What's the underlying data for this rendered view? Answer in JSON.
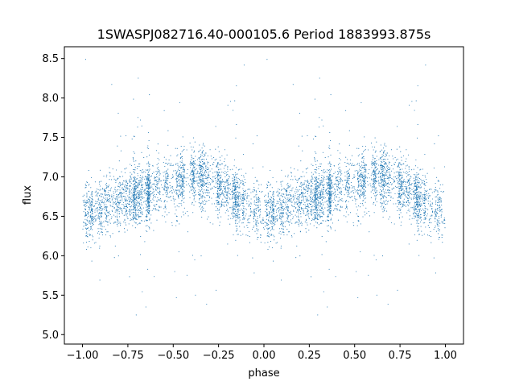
{
  "chart_data": {
    "type": "scatter",
    "title": "1SWASPJ082716.40-000105.6 Period 1883993.875s",
    "xlabel": "phase",
    "ylabel": "flux",
    "xlim": [
      -1.1,
      1.1
    ],
    "ylim": [
      4.88,
      8.65
    ],
    "x_ticks": [
      -1.0,
      -0.75,
      -0.5,
      -0.25,
      0.0,
      0.25,
      0.5,
      0.75,
      1.0
    ],
    "x_tick_labels": [
      "−1.00",
      "−0.75",
      "−0.50",
      "−0.25",
      "0.00",
      "0.25",
      "0.50",
      "0.75",
      "1.00"
    ],
    "y_ticks": [
      5.0,
      5.5,
      6.0,
      6.5,
      7.0,
      7.5,
      8.0,
      8.5
    ],
    "y_tick_labels": [
      "5.0",
      "5.5",
      "6.0",
      "6.5",
      "7.0",
      "7.5",
      "8.0",
      "8.5"
    ],
    "grid": false,
    "marker_color": "#1f77b4",
    "phase_range": [
      -1.0,
      1.0
    ],
    "series": [
      {
        "trend": {
          "x": [
            0.0,
            0.05,
            0.1,
            0.15,
            0.2,
            0.25,
            0.3,
            0.35,
            0.4,
            0.45,
            0.5,
            0.55,
            0.6,
            0.65,
            0.7,
            0.75,
            0.8,
            0.85,
            0.9,
            0.95,
            1.0
          ],
          "y": [
            6.55,
            6.58,
            6.62,
            6.66,
            6.7,
            6.74,
            6.77,
            6.8,
            6.84,
            6.88,
            6.92,
            6.96,
            7.0,
            7.0,
            6.95,
            6.88,
            6.8,
            6.72,
            6.64,
            6.58,
            6.55
          ]
        },
        "spread": 0.18,
        "points_per_unit_phase": 3200
      }
    ]
  }
}
